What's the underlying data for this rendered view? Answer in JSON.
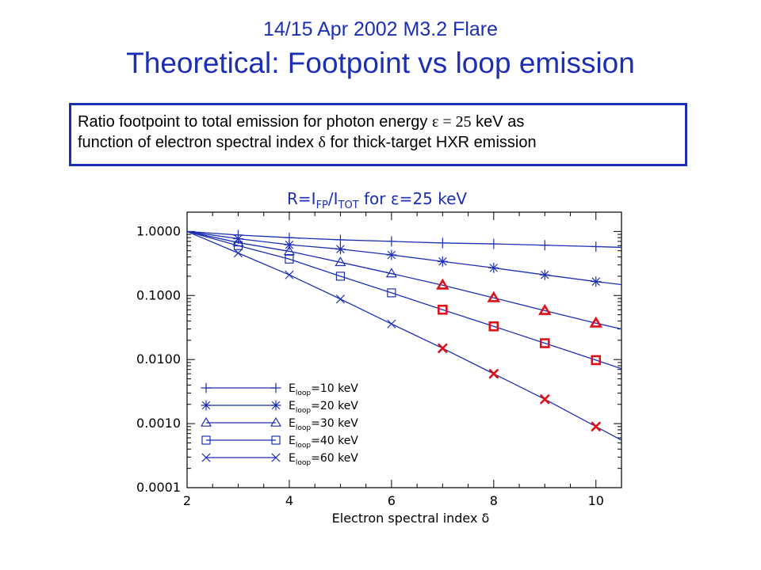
{
  "slide": {
    "title": "14/15 Apr 2002 M3.2 Flare",
    "subtitle": "Theoretical: Footpoint vs loop emission"
  },
  "caption": {
    "line1_pre": "Ratio footpoint to total emission for photon energy ",
    "line1_sym": "ε = 25",
    "line1_post": " keV as",
    "line2_pre": "function of electron spectral index ",
    "line2_sym": "δ",
    "line2_post": " for thick-target HXR emission"
  },
  "colors": {
    "title": "#1c2fb4",
    "line": "#1c2fb4",
    "highlight": "#e0101a"
  },
  "chart_data": {
    "type": "line",
    "title_parts": {
      "r": "R=I",
      "fp": "FP",
      "slash": "/I",
      "tot": "TOT",
      "rest": " for ε=25 keV"
    },
    "xlabel": "Electron spectral index δ",
    "xlim": [
      2,
      10.5
    ],
    "ylim": [
      0.0001,
      2
    ],
    "yscale": "log",
    "x_ticks": [
      "2",
      "4",
      "6",
      "8",
      "10"
    ],
    "x_tick_values": [
      2,
      4,
      6,
      8,
      10
    ],
    "y_ticks": [
      "1.0000",
      "0.1000",
      "0.0100",
      "0.0010",
      "0.0001"
    ],
    "y_tick_values": [
      1,
      0.1,
      0.01,
      0.001,
      0.0001
    ],
    "grid": false,
    "legend_placement": "bottom-left",
    "legend_sub": "loop",
    "legend_unit": "keV",
    "series": [
      {
        "name": "E_loop=10 keV",
        "e": "10",
        "marker": "plus",
        "x": [
          3,
          4,
          5,
          6,
          7,
          8,
          9,
          10
        ],
        "y": [
          0.88,
          0.8,
          0.74,
          0.7,
          0.66,
          0.64,
          0.61,
          0.58
        ],
        "highlight_from": 11,
        "line_end": 0.565
      },
      {
        "name": "E_loop=20 keV",
        "e": "20",
        "marker": "asterisk",
        "x": [
          3,
          4,
          5,
          6,
          7,
          8,
          9,
          10
        ],
        "y": [
          0.77,
          0.62,
          0.53,
          0.43,
          0.34,
          0.27,
          0.21,
          0.165
        ],
        "highlight_from": 11,
        "line_end": 0.148
      },
      {
        "name": "E_loop=30 keV",
        "e": "30",
        "marker": "triangle",
        "x": [
          3,
          4,
          5,
          6,
          7,
          8,
          9,
          10
        ],
        "y": [
          0.67,
          0.49,
          0.33,
          0.22,
          0.145,
          0.092,
          0.058,
          0.037
        ],
        "highlight_from": 7,
        "line_end": 0.03
      },
      {
        "name": "E_loop=40 keV",
        "e": "40",
        "marker": "square",
        "x": [
          3,
          4,
          5,
          6,
          7,
          8,
          9,
          10
        ],
        "y": [
          0.6,
          0.37,
          0.2,
          0.11,
          0.06,
          0.033,
          0.018,
          0.0098
        ],
        "highlight_from": 7,
        "line_end": 0.0072
      },
      {
        "name": "E_loop=60 keV",
        "e": "60",
        "marker": "cross",
        "x": [
          3,
          4,
          5,
          6,
          7,
          8,
          9,
          10
        ],
        "y": [
          0.46,
          0.21,
          0.088,
          0.036,
          0.015,
          0.006,
          0.0024,
          0.0009
        ],
        "highlight_from": 7,
        "line_end": 0.00055
      }
    ]
  }
}
